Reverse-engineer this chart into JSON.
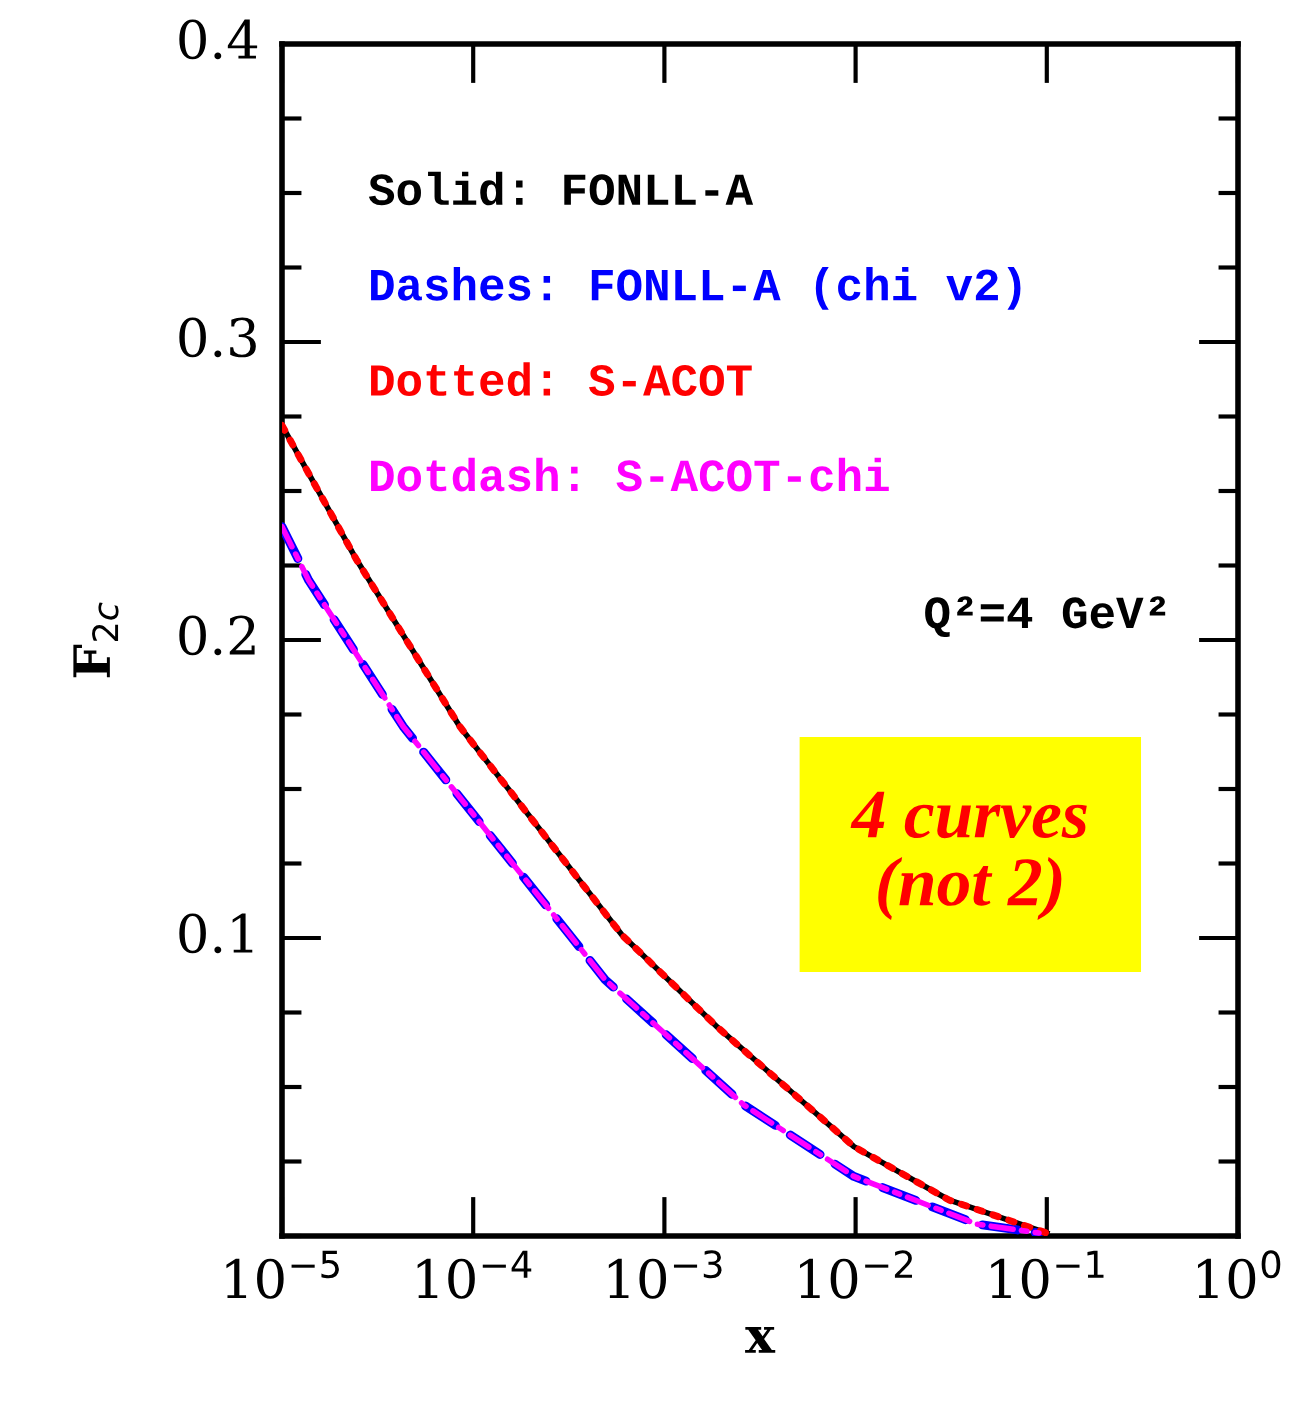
{
  "chart_data": {
    "type": "line",
    "xlabel": "x",
    "ylabel": "F$_{2c}$",
    "log": "x",
    "xlim": [
      1e-05,
      1
    ],
    "xticks": [
      {
        "value": 1e-05,
        "label": "10$^{−5}$"
      },
      {
        "value": 0.0001,
        "label": "10$^{−4}$"
      },
      {
        "value": 0.001,
        "label": "10$^{−3}$"
      },
      {
        "value": 0.01,
        "label": "10$^{−2}$"
      },
      {
        "value": 0.1,
        "label": "10$^{−1}$"
      },
      {
        "value": 1,
        "label": "10$^{0}$"
      }
    ],
    "ylim": [
      0,
      0.4
    ],
    "yticks": [
      0.1,
      0.2,
      0.3,
      0.4
    ],
    "grid": false,
    "legend": "top left",
    "marker": "none",
    "series": [
      {
        "name": "Solid: FONLL-A",
        "color": "#000000",
        "line_style": "solid",
        "x": [
          1e-05,
          2.45e-05,
          8.5e-05,
          0.0006,
          0.0019,
          0.0098,
          0.031,
          0.1
        ],
        "values": [
          0.272,
          0.227,
          0.171,
          0.101,
          0.07,
          0.03,
          0.012,
          0.001
        ]
      },
      {
        "name": "Dashes: FONLL-A (chi v2)",
        "color": "#0000ff",
        "line_style": "dashed",
        "x": [
          1e-05,
          1.38e-05,
          4.3e-05,
          0.00032,
          0.00049,
          0.0026,
          0.0098,
          0.043,
          0.091
        ],
        "values": [
          0.238,
          0.22,
          0.171,
          0.101,
          0.086,
          0.044,
          0.02,
          0.004,
          0.001
        ]
      },
      {
        "name": "Dotted: S-ACOT",
        "color": "#ff0000",
        "line_style": "dotted",
        "x": [
          1e-05,
          2.45e-05,
          8.5e-05,
          0.0006,
          0.0019,
          0.0098,
          0.031,
          0.1
        ],
        "values": [
          0.272,
          0.227,
          0.171,
          0.101,
          0.07,
          0.03,
          0.012,
          0.001
        ]
      },
      {
        "name": "Dotdash: S-ACOT-chi",
        "color": "#ff00ff",
        "line_style": "dashdot",
        "x": [
          1e-05,
          1.38e-05,
          4.3e-05,
          0.00032,
          0.00049,
          0.0026,
          0.0098,
          0.043,
          0.091
        ],
        "values": [
          0.238,
          0.22,
          0.171,
          0.101,
          0.086,
          0.044,
          0.02,
          0.004,
          0.001
        ]
      }
    ],
    "annotations": [
      "Q²=4 GeV²",
      "4 curves\n(not 2)"
    ]
  }
}
